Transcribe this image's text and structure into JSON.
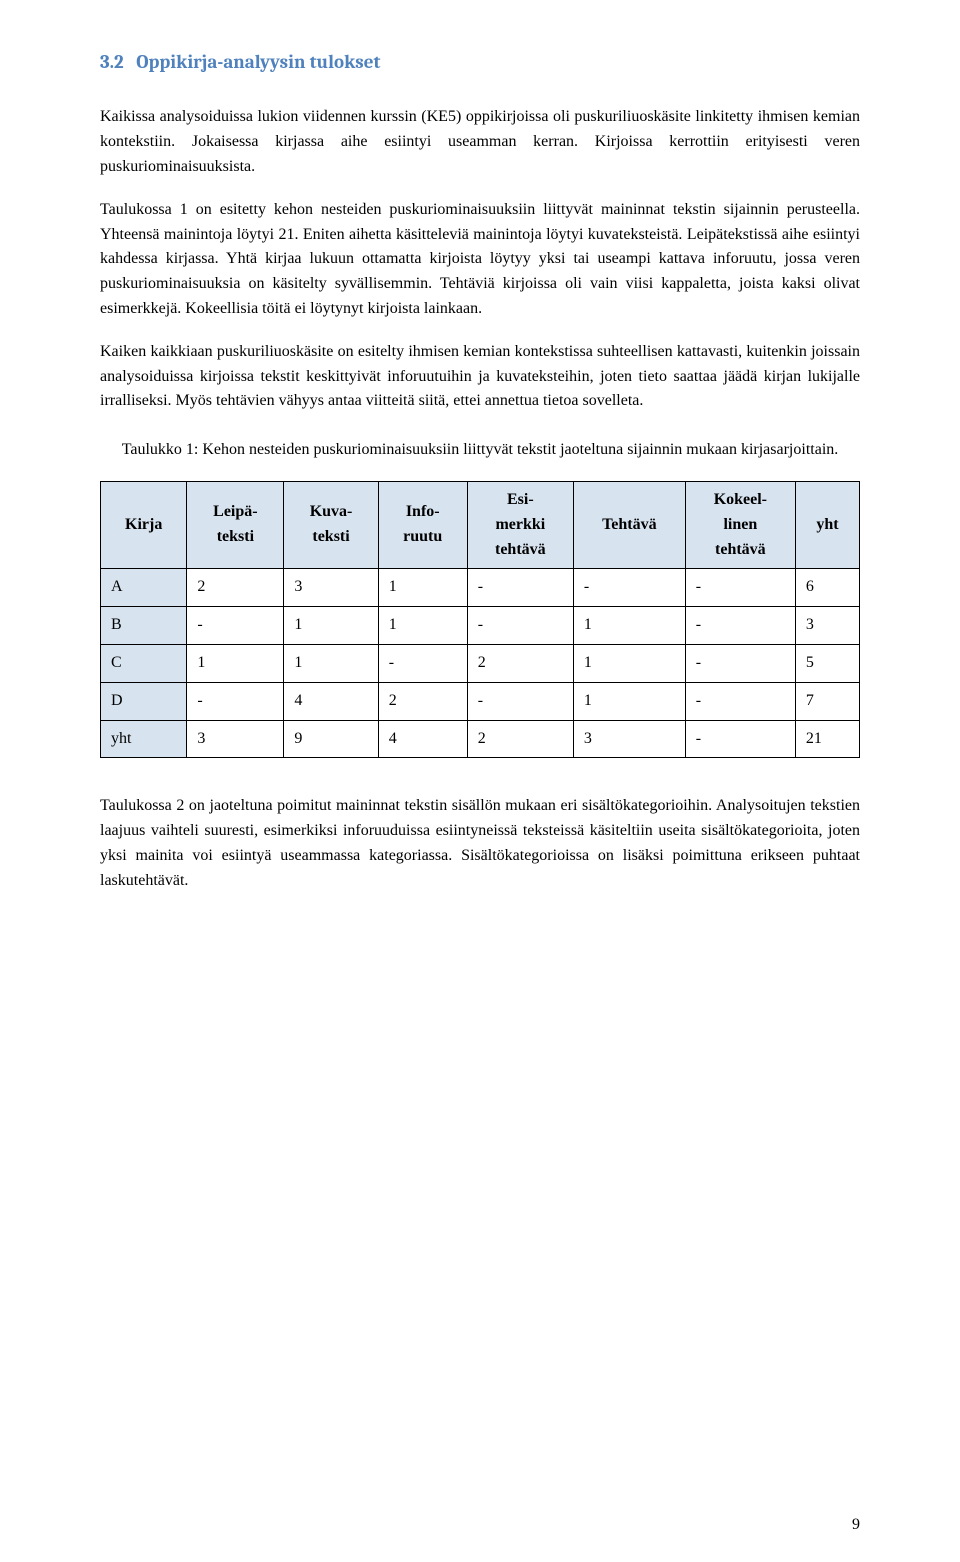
{
  "section": {
    "number": "3.2",
    "title": "Oppikirja-analyysin tulokset"
  },
  "paragraphs": {
    "p1": "Kaikissa analysoiduissa lukion viidennen kurssin (KE5) oppikirjoissa oli puskuriliuoskäsite linkitetty ihmisen kemian kontekstiin. Jokaisessa kirjassa aihe esiintyi useamman kerran. Kirjoissa kerrottiin erityisesti veren puskuriominaisuuksista.",
    "p2": "Taulukossa 1 on esitetty kehon nesteiden puskuriominaisuuksiin liittyvät maininnat tekstin sijainnin perusteella. Yhteensä mainintoja löytyi 21. Eniten aihetta käsitteleviä mainintoja löytyi kuvateksteistä. Leipätekstissä aihe esiintyi kahdessa kirjassa. Yhtä kirjaa lukuun ottamatta kirjoista löytyy yksi tai useampi kattava inforuutu, jossa veren puskuriominaisuuksia on käsitelty syvällisemmin. Tehtäviä kirjoissa oli vain viisi kappaletta, joista kaksi olivat esimerkkejä. Kokeellisia töitä ei löytynyt kirjoista lainkaan.",
    "p3": "Kaiken kaikkiaan puskuriliuoskäsite on esitelty ihmisen kemian kontekstissa suhteellisen kattavasti, kuitenkin joissain analysoiduissa kirjoissa tekstit keskittyivät inforuutuihin ja kuvateksteihin, joten tieto saattaa jäädä kirjan lukijalle irralliseksi. Myös tehtävien vähyys antaa viitteitä siitä, ettei annettua tietoa sovelleta.",
    "p4": "Taulukossa 2 on jaoteltuna poimitut maininnat tekstin sisällön mukaan eri sisältökategorioihin. Analysoitujen tekstien laajuus vaihteli suuresti, esimerkiksi inforuuduissa esiintyneissä teksteissä käsiteltiin useita sisältökategorioita, joten yksi mainita voi esiintyä useammassa kategoriassa. Sisältökategorioissa on lisäksi poimittuna erikseen puhtaat laskutehtävät."
  },
  "table1": {
    "caption": "Taulukko 1: Kehon nesteiden puskuriominaisuuksiin liittyvät tekstit jaoteltuna sijainnin mukaan kirjasarjoittain.",
    "columns": [
      "Kirja",
      "Leipä-\nteksti",
      "Kuva-\nteksti",
      "Info-\nruutu",
      "Esi-\nmerkki\ntehtävä",
      "Tehtävä",
      "Kokeel-\nlinen\ntehtävä",
      "yht"
    ],
    "rows": [
      [
        "A",
        "2",
        "3",
        "1",
        "-",
        "-",
        "-",
        "6"
      ],
      [
        "B",
        "-",
        "1",
        "1",
        "-",
        "1",
        "-",
        "3"
      ],
      [
        "C",
        "1",
        "1",
        "-",
        "2",
        "1",
        "-",
        "5"
      ],
      [
        "D",
        "-",
        "4",
        "2",
        "-",
        "1",
        "-",
        "7"
      ],
      [
        "yht",
        "3",
        "9",
        "4",
        "2",
        "3",
        "-",
        "21"
      ]
    ],
    "header_bg": "#d7e3ef",
    "border_color": "#000000"
  },
  "page_number": "9",
  "colors": {
    "heading": "#4f81bd",
    "text": "#000000",
    "background": "#ffffff"
  }
}
